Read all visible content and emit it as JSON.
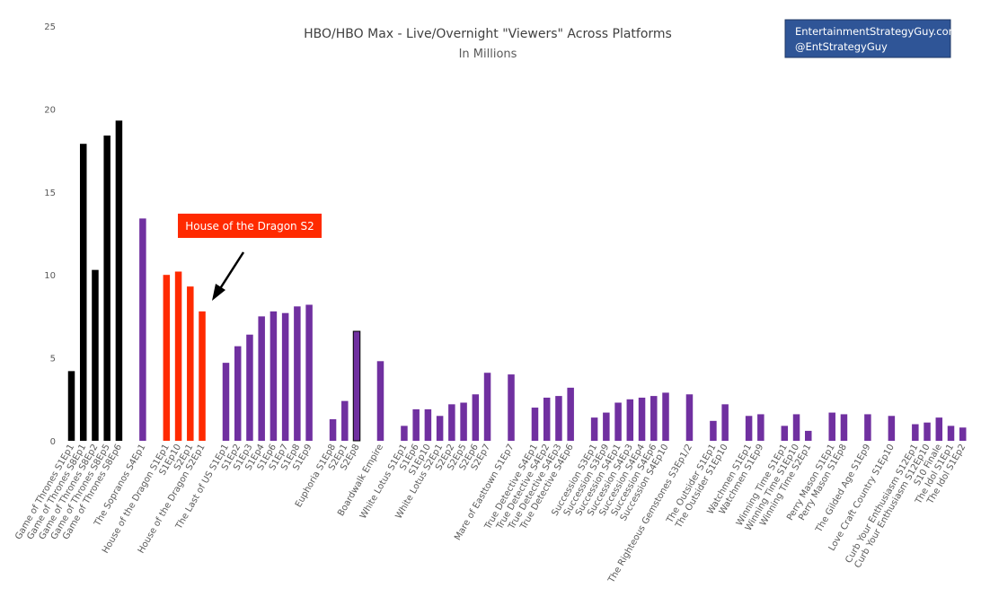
{
  "colors": {
    "gameofthrones": "#000000",
    "hbo_purple": "#7030a0",
    "highlight_red": "#ff2a00",
    "brand_box": "#2f5597",
    "brand_border": "#1f3864",
    "axis_text": "#595959"
  },
  "brand": {
    "line1": "EntertainmentStrategyGuy.com",
    "line2": "@EntStrategyGuy"
  },
  "annotation": {
    "label": "House of the Dragon S2"
  },
  "chart_data": {
    "type": "bar",
    "title": "HBO/HBO Max - Live/Overnight \"Viewers\" Across Platforms",
    "subtitle": "In Millions",
    "xlabel": "",
    "ylabel": "",
    "ylim": [
      0,
      25
    ],
    "yticks": [
      0,
      5,
      10,
      15,
      20,
      25
    ],
    "grid": false,
    "legend": "none",
    "bars": [
      {
        "slot": 0,
        "label": "Game of Thrones S1Ep1",
        "value": 4.2,
        "group": "gameofthrones"
      },
      {
        "slot": 1,
        "label": "Game of Thrones S8Ep1",
        "value": 17.9,
        "group": "gameofthrones"
      },
      {
        "slot": 2,
        "label": "Game of Thrones S8Ep2",
        "value": 10.3,
        "group": "gameofthrones"
      },
      {
        "slot": 3,
        "label": "Game of Thrones S8Ep5",
        "value": 18.4,
        "group": "gameofthrones"
      },
      {
        "slot": 4,
        "label": "Game of Thrones S8Ep6",
        "value": 19.3,
        "group": "gameofthrones"
      },
      {
        "slot": 6,
        "label": "The Sopranos S4Ep1",
        "value": 13.4,
        "group": "hbo"
      },
      {
        "slot": 8,
        "label": "House of the Dragon S1Ep1",
        "value": 10.0,
        "group": "highlight"
      },
      {
        "slot": 9,
        "label": "S1Ep10",
        "value": 10.2,
        "group": "highlight"
      },
      {
        "slot": 10,
        "label": "S2Ep1",
        "value": 9.3,
        "group": "highlight"
      },
      {
        "slot": 11,
        "label": "House of the Dragon S2Ep1",
        "value": 7.8,
        "group": "highlight"
      },
      {
        "slot": 13,
        "label": "The Last of US S1Ep1",
        "value": 4.7,
        "group": "hbo"
      },
      {
        "slot": 14,
        "label": "S1Ep2",
        "value": 5.7,
        "group": "hbo"
      },
      {
        "slot": 15,
        "label": "S1Ep3",
        "value": 6.4,
        "group": "hbo"
      },
      {
        "slot": 16,
        "label": "S1Ep4",
        "value": 7.5,
        "group": "hbo"
      },
      {
        "slot": 17,
        "label": "S1Ep6",
        "value": 7.8,
        "group": "hbo"
      },
      {
        "slot": 18,
        "label": "S1Ep7",
        "value": 7.7,
        "group": "hbo"
      },
      {
        "slot": 19,
        "label": "S1Ep8",
        "value": 8.1,
        "group": "hbo"
      },
      {
        "slot": 20,
        "label": "S1Ep9",
        "value": 8.2,
        "group": "hbo"
      },
      {
        "slot": 22,
        "label": "Euphoria S1Ep8",
        "value": 1.3,
        "group": "hbo"
      },
      {
        "slot": 23,
        "label": "S2Ep1",
        "value": 2.4,
        "group": "hbo"
      },
      {
        "slot": 24,
        "label": "S2Ep8",
        "value": 6.6,
        "group": "hbo",
        "outlined": true
      },
      {
        "slot": 26,
        "label": "Boardwalk Empire",
        "value": 4.8,
        "group": "hbo"
      },
      {
        "slot": 28,
        "label": "White Lotus S1Ep1",
        "value": 0.9,
        "group": "hbo"
      },
      {
        "slot": 29,
        "label": "S1Ep6",
        "value": 1.9,
        "group": "hbo"
      },
      {
        "slot": 30,
        "label": "S1Ep10",
        "value": 1.9,
        "group": "hbo"
      },
      {
        "slot": 31,
        "label": "White Lotus S2Ep1",
        "value": 1.5,
        "group": "hbo"
      },
      {
        "slot": 32,
        "label": "S2Ep2",
        "value": 2.2,
        "group": "hbo"
      },
      {
        "slot": 33,
        "label": "S2Ep5",
        "value": 2.3,
        "group": "hbo"
      },
      {
        "slot": 34,
        "label": "S2Ep6",
        "value": 2.8,
        "group": "hbo"
      },
      {
        "slot": 35,
        "label": "S2Ep7",
        "value": 4.1,
        "group": "hbo"
      },
      {
        "slot": 37,
        "label": "Mare of Easttown S1Ep7",
        "value": 4.0,
        "group": "hbo"
      },
      {
        "slot": 39,
        "label": "True Detective S4Ep1",
        "value": 2.0,
        "group": "hbo"
      },
      {
        "slot": 40,
        "label": "True Detective S4Ep2",
        "value": 2.6,
        "group": "hbo"
      },
      {
        "slot": 41,
        "label": "True Detective S4Ep3",
        "value": 2.7,
        "group": "hbo"
      },
      {
        "slot": 42,
        "label": "True Detective S4Ep6",
        "value": 3.2,
        "group": "hbo"
      },
      {
        "slot": 44,
        "label": "Succession S3Ep1",
        "value": 1.4,
        "group": "hbo"
      },
      {
        "slot": 45,
        "label": "Succession S3Ep9",
        "value": 1.7,
        "group": "hbo"
      },
      {
        "slot": 46,
        "label": "Succession S4Ep1",
        "value": 2.3,
        "group": "hbo"
      },
      {
        "slot": 47,
        "label": "Succession S4Ep3",
        "value": 2.5,
        "group": "hbo"
      },
      {
        "slot": 48,
        "label": "Succession S4Ep4",
        "value": 2.6,
        "group": "hbo"
      },
      {
        "slot": 49,
        "label": "Succession S4Ep6",
        "value": 2.7,
        "group": "hbo"
      },
      {
        "slot": 50,
        "label": "Succession S4Ep10",
        "value": 2.9,
        "group": "hbo"
      },
      {
        "slot": 52,
        "label": "The Righteous Gemstones S3Ep1/2",
        "value": 2.8,
        "group": "hbo"
      },
      {
        "slot": 54,
        "label": "The Outsider S1Ep1",
        "value": 1.2,
        "group": "hbo"
      },
      {
        "slot": 55,
        "label": "The Outsider S1Ep10",
        "value": 2.2,
        "group": "hbo"
      },
      {
        "slot": 57,
        "label": "Watchmen S1Ep1",
        "value": 1.5,
        "group": "hbo"
      },
      {
        "slot": 58,
        "label": "Watchmen S1Ep9",
        "value": 1.6,
        "group": "hbo"
      },
      {
        "slot": 60,
        "label": "Winning Time S1Ep1",
        "value": 0.9,
        "group": "hbo"
      },
      {
        "slot": 61,
        "label": "Winning Time S1Ep10",
        "value": 1.6,
        "group": "hbo"
      },
      {
        "slot": 62,
        "label": "Winning Time S2Ep1",
        "value": 0.6,
        "group": "hbo"
      },
      {
        "slot": 64,
        "label": "Perry Mason S1Ep1",
        "value": 1.7,
        "group": "hbo"
      },
      {
        "slot": 65,
        "label": "Perry Mason S1Ep8",
        "value": 1.6,
        "group": "hbo"
      },
      {
        "slot": 67,
        "label": "The Gilded Age S1Ep9",
        "value": 1.6,
        "group": "hbo"
      },
      {
        "slot": 69,
        "label": "Love Craft Country S1Ep10",
        "value": 1.5,
        "group": "hbo"
      },
      {
        "slot": 71,
        "label": "Curb Your Enthusiasm S12Ep1",
        "value": 1.0,
        "group": "hbo"
      },
      {
        "slot": 72,
        "label": "Curb Your Enthusiasm S12Ep10",
        "value": 1.1,
        "group": "hbo"
      },
      {
        "slot": 73,
        "label": "S10 Finale",
        "value": 1.4,
        "group": "hbo"
      },
      {
        "slot": 74,
        "label": "The Idol S1Ep1",
        "value": 0.9,
        "group": "hbo"
      },
      {
        "slot": 75,
        "label": "The Idol S1Ep2",
        "value": 0.8,
        "group": "hbo"
      }
    ]
  }
}
